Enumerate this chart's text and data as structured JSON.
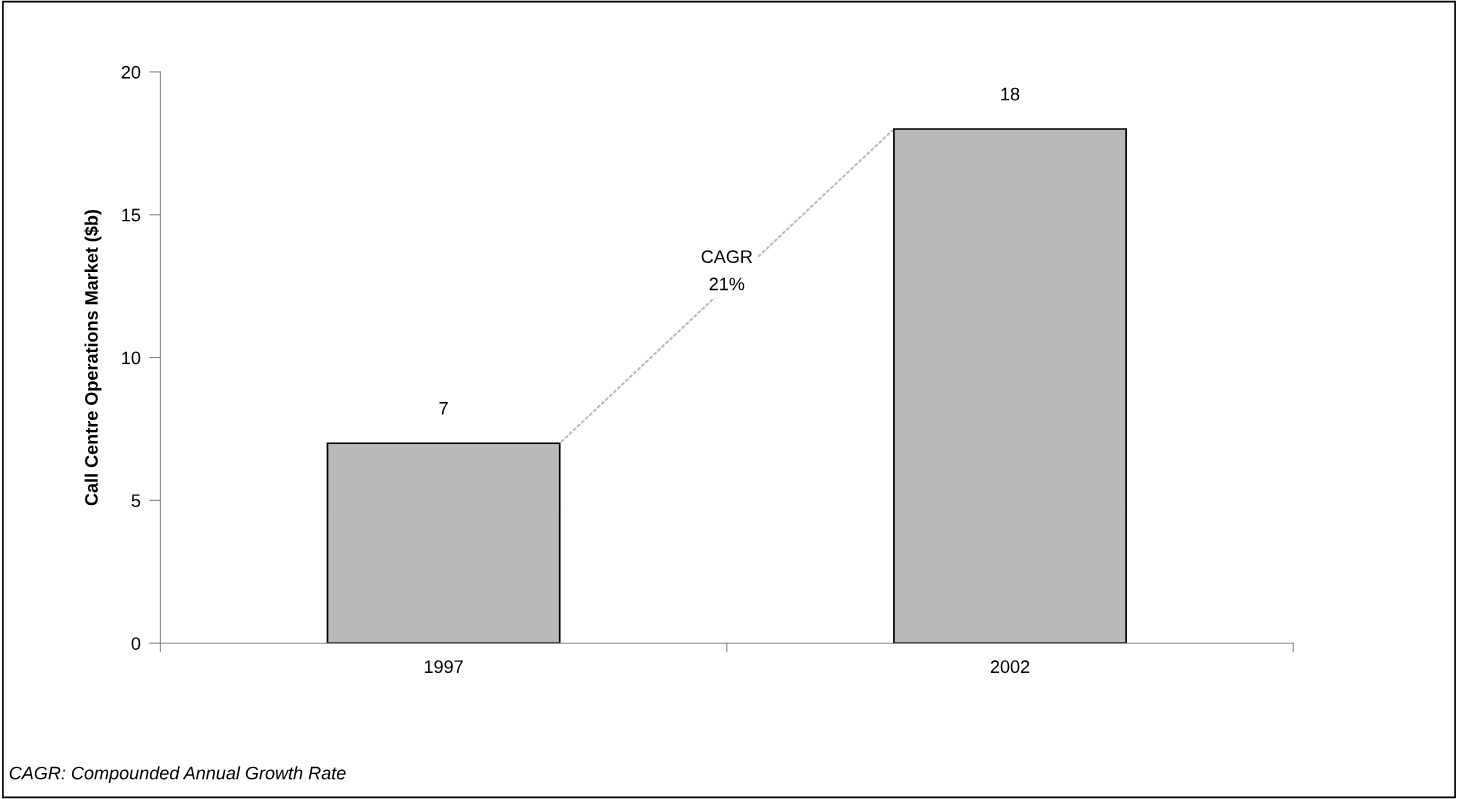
{
  "chart_data": {
    "type": "bar",
    "ylabel": "Call Centre Operations Market ($b)",
    "categories": [
      "1997",
      "2002"
    ],
    "values": [
      7,
      18
    ],
    "color": "#b9b9b9",
    "ylim": [
      0,
      20
    ],
    "yticks": [
      0,
      5,
      10,
      15,
      20
    ],
    "grid": false,
    "data_labels": true,
    "annotations": [
      "CAGR\n21%",
      "CAGR: Compounded Annual Growth Rate"
    ]
  }
}
